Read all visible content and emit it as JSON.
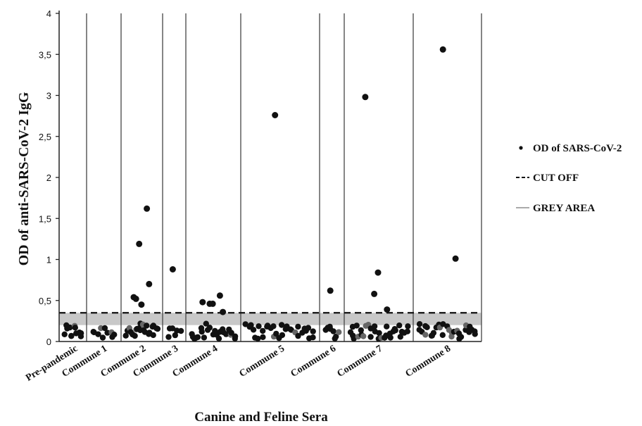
{
  "chart_data": {
    "type": "scatter",
    "xlabel": "Canine and Feline Sera",
    "ylabel": "OD of anti-SARS-CoV-2 IgG",
    "ylim": [
      0,
      4
    ],
    "yticks": [
      "0",
      "0,5",
      "1",
      "1,5",
      "2",
      "2,5",
      "3",
      "3,5",
      "4"
    ],
    "grid": false,
    "legend_position": "right",
    "categories": [
      "Pre-pandemic",
      "Commune 1",
      "Commune 2",
      "Commune 3",
      "Commune 4",
      "Commune 5",
      "Commune 6",
      "Commune 7",
      "Commune 8"
    ],
    "cut_off": 0.35,
    "grey_area": [
      0.2,
      0.35
    ],
    "legend": [
      {
        "label": "OD of SARS-CoV-2",
        "kind": "dot"
      },
      {
        "label": "CUT OFF",
        "kind": "dashed"
      },
      {
        "label": "GREY AREA",
        "kind": "line"
      }
    ],
    "colors": {
      "points": "#111111",
      "points_grey": "#666666",
      "cut_off": "#111111",
      "grey_area": "#c8c8c8",
      "dividers": "#444444"
    },
    "high_points": [
      {
        "category": "Commune 2",
        "y": 1.19
      },
      {
        "category": "Commune 2",
        "y": 1.62
      },
      {
        "category": "Commune 2",
        "y": 0.54
      },
      {
        "category": "Commune 2",
        "y": 0.45
      },
      {
        "category": "Commune 2",
        "y": 0.7
      },
      {
        "category": "Commune 2",
        "y": 0.52
      },
      {
        "category": "Commune 3",
        "y": 0.88
      },
      {
        "category": "Commune 4",
        "y": 0.46
      },
      {
        "category": "Commune 4",
        "y": 0.56
      },
      {
        "category": "Commune 4",
        "y": 0.48
      },
      {
        "category": "Commune 4",
        "y": 0.46
      },
      {
        "category": "Commune 4",
        "y": 0.36
      },
      {
        "category": "Commune 5",
        "y": 2.76
      },
      {
        "category": "Commune 6",
        "y": 0.62
      },
      {
        "category": "Commune 7",
        "y": 0.58
      },
      {
        "category": "Commune 7",
        "y": 0.39
      },
      {
        "category": "Commune 7",
        "y": 2.98
      },
      {
        "category": "Commune 7",
        "y": 0.84
      },
      {
        "category": "Commune 8",
        "y": 3.56
      },
      {
        "category": "Commune 8",
        "y": 1.01
      }
    ],
    "low_points_per_category": [
      12,
      10,
      22,
      6,
      24,
      32,
      8,
      32,
      30
    ],
    "low_range": [
      0.03,
      0.22
    ]
  }
}
